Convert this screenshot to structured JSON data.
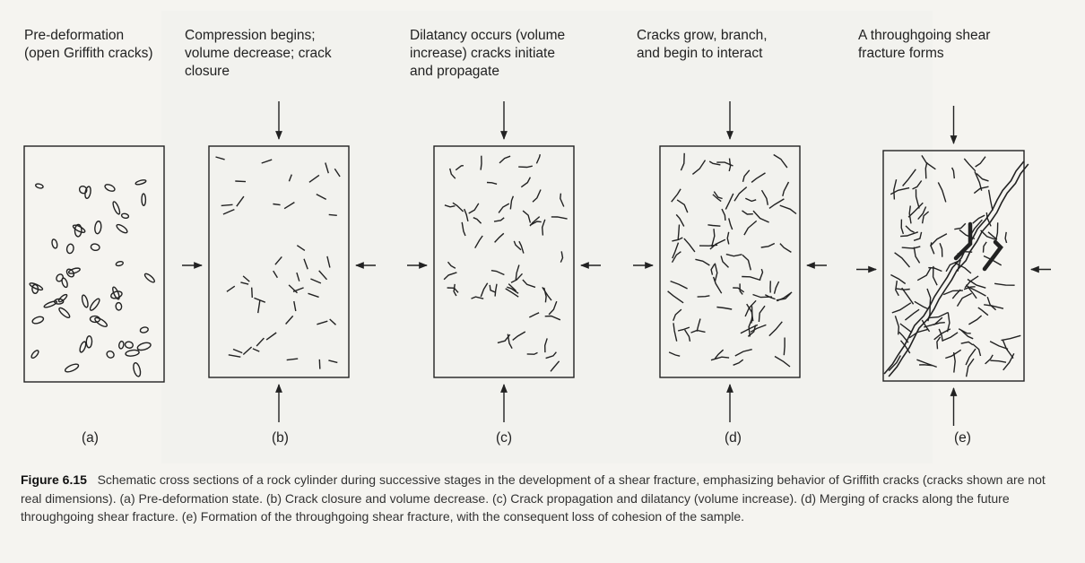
{
  "stages": [
    {
      "id": "a",
      "title": "Pre-deformation\n(open Griffith cracks)",
      "label": "(a)"
    },
    {
      "id": "b",
      "title": "Compression begins;\nvolume decrease; crack\nclosure",
      "label": "(b)"
    },
    {
      "id": "c",
      "title": "Dilatancy occurs (volume\nincrease) cracks initiate\nand propagate",
      "label": "(c)"
    },
    {
      "id": "d",
      "title": "Cracks grow, branch,\nand begin to interact",
      "label": "(d)"
    },
    {
      "id": "e",
      "title": "A throughgoing shear\nfracture forms",
      "label": "(e)"
    }
  ],
  "caption": {
    "figure_number": "Figure 6.15",
    "text": "Schematic cross sections of a rock cylinder during successive stages in the development of a shear fracture, emphasizing behavior of Griffith cracks (cracks shown are not real dimensions). (a) Pre-deformation state. (b) Crack closure and volume decrease. (c) Crack propagation and dilatancy (volume increase). (d) Merging of cracks along the future throughgoing shear fracture. (e) Formation of the throughgoing shear fracture, with the consequent loss of cohesion of the sample."
  },
  "colors": {
    "ink": "#222222",
    "background": "#f5f4f0"
  }
}
